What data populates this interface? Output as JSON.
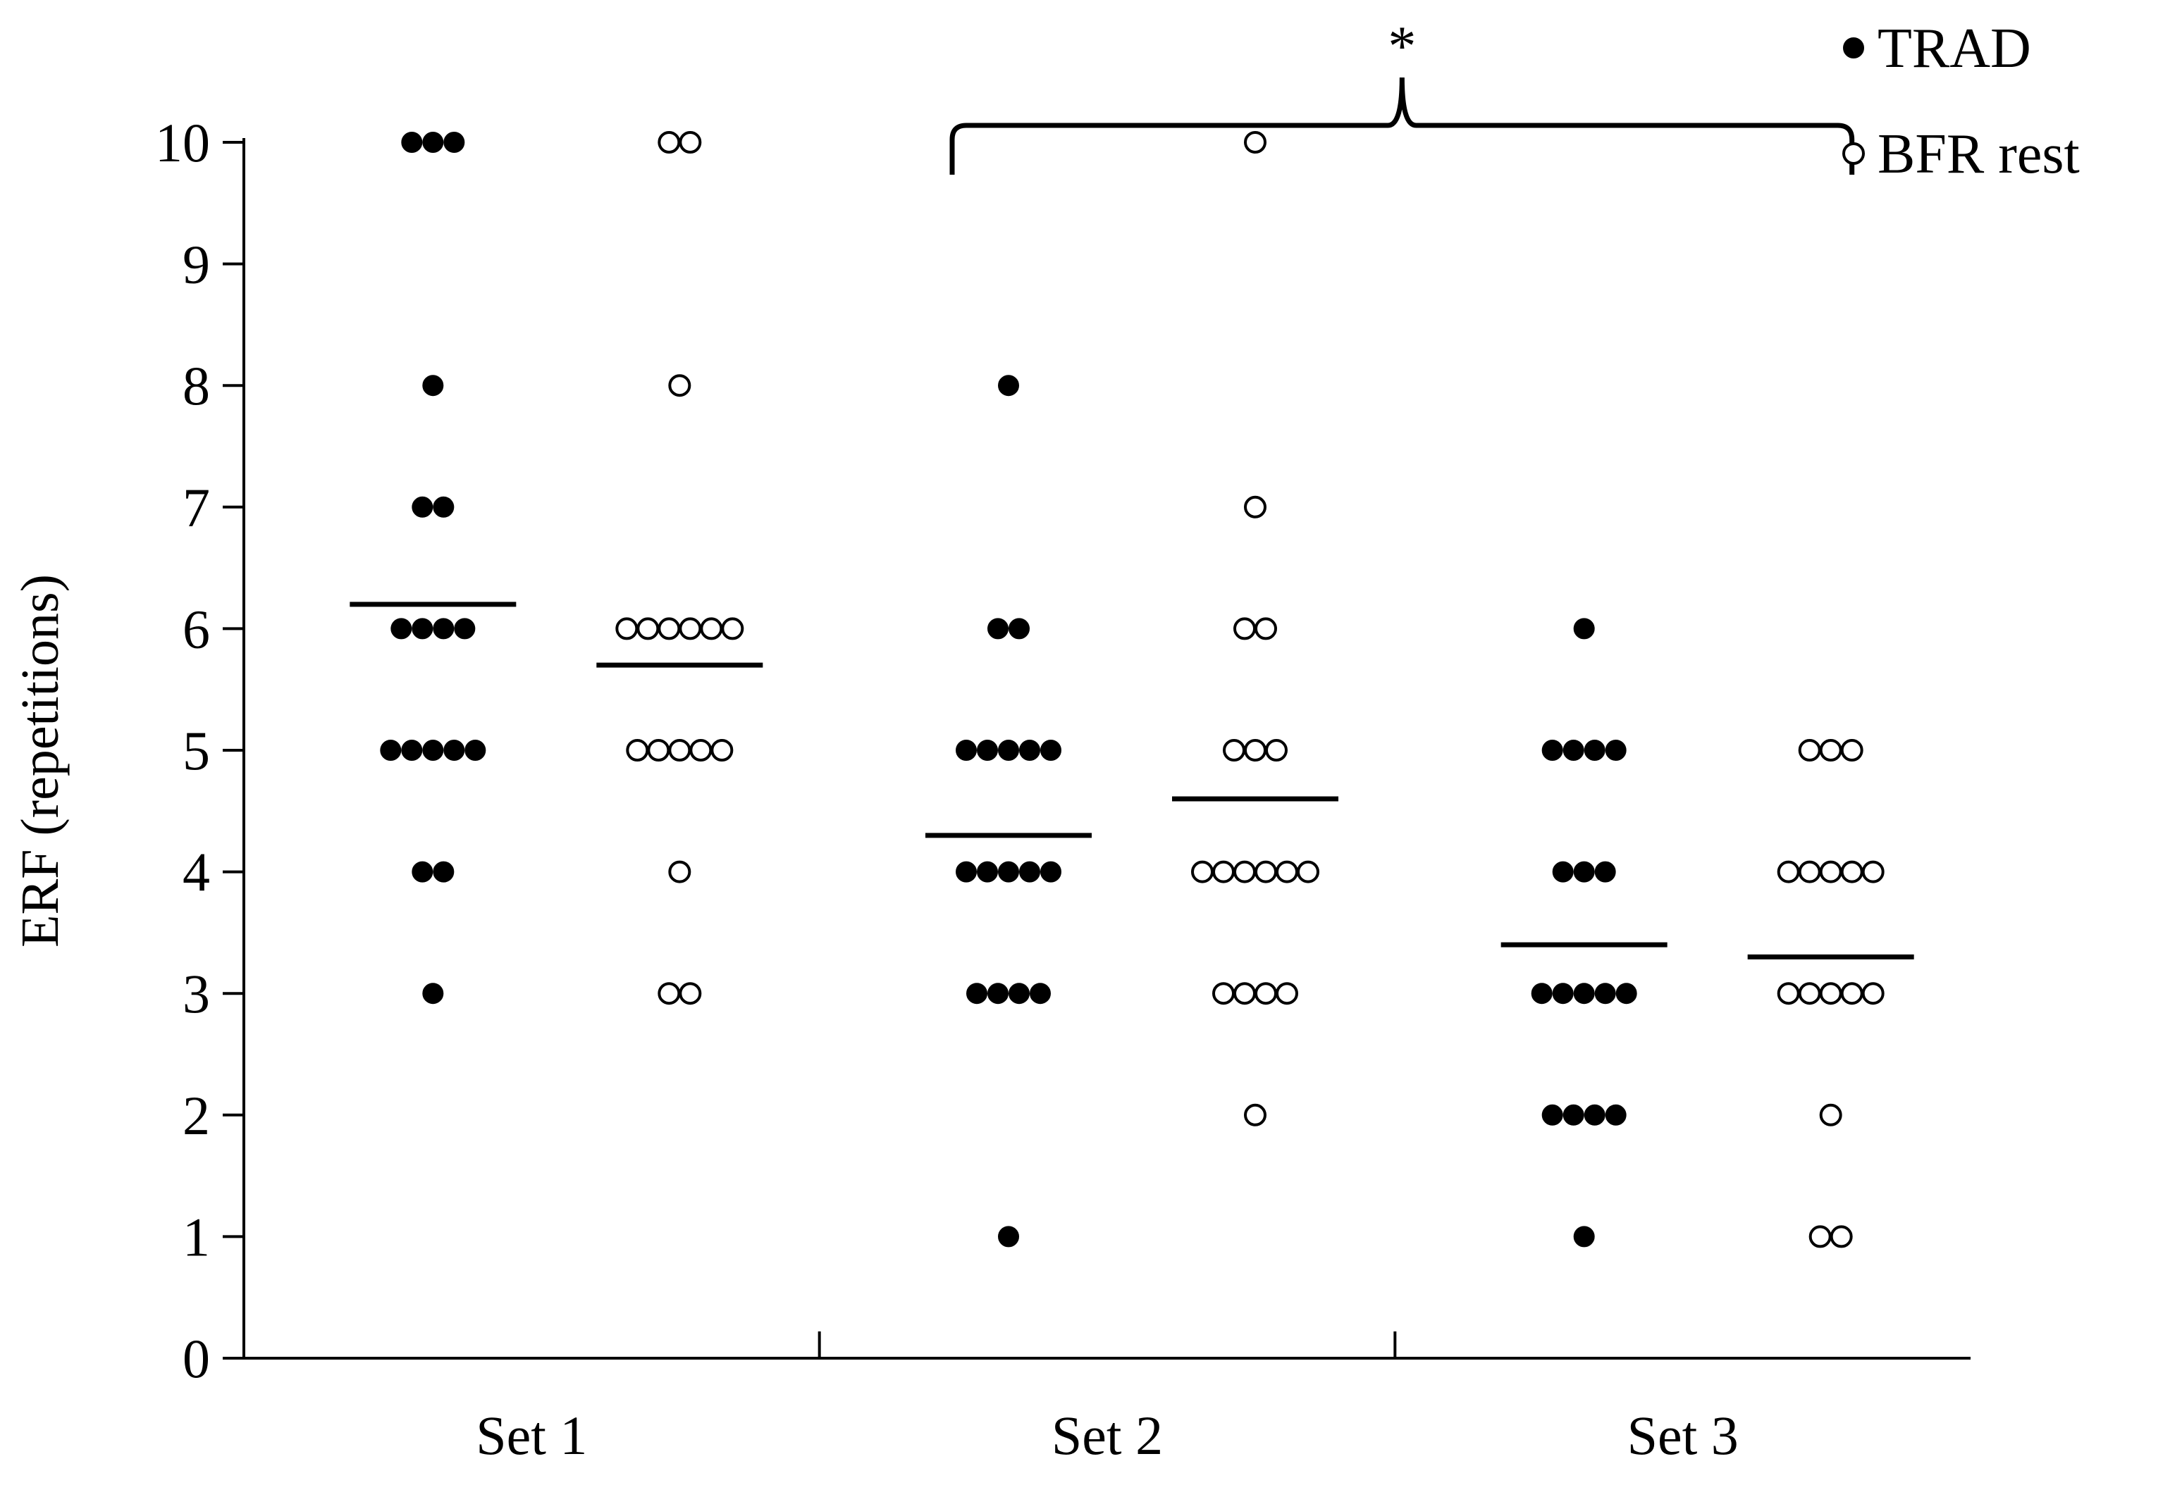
{
  "chart_data": {
    "type": "scatter",
    "ylabel": "ERF (repetitions)",
    "ylim": [
      0,
      10
    ],
    "yticks": [
      0,
      1,
      2,
      3,
      4,
      5,
      6,
      7,
      8,
      9,
      10
    ],
    "yticklabels": [
      "0",
      "1",
      "2",
      "3",
      "4",
      "5",
      "6",
      "7",
      "8",
      "9",
      "10"
    ],
    "categories": [
      "Set 1",
      "Set 2",
      "Set 3"
    ],
    "grid": false,
    "legend_position": "top-right",
    "series": [
      {
        "name": "TRAD",
        "marker": "filled",
        "color": "#000000",
        "points": [
          [
            {
              "y": 10,
              "n": 3
            },
            {
              "y": 8,
              "n": 1
            },
            {
              "y": 7,
              "n": 2
            },
            {
              "y": 6,
              "n": 4
            },
            {
              "y": 5,
              "n": 5
            },
            {
              "y": 4,
              "n": 2
            },
            {
              "y": 3,
              "n": 1
            }
          ],
          [
            {
              "y": 8,
              "n": 1
            },
            {
              "y": 6,
              "n": 2
            },
            {
              "y": 5,
              "n": 5
            },
            {
              "y": 4,
              "n": 5
            },
            {
              "y": 3,
              "n": 4
            },
            {
              "y": 1,
              "n": 1
            }
          ],
          [
            {
              "y": 6,
              "n": 1
            },
            {
              "y": 5,
              "n": 4
            },
            {
              "y": 4,
              "n": 3
            },
            {
              "y": 3,
              "n": 5
            },
            {
              "y": 2,
              "n": 4
            },
            {
              "y": 1,
              "n": 1
            }
          ]
        ],
        "means": [
          6.2,
          4.3,
          3.4
        ]
      },
      {
        "name": "BFR rest",
        "marker": "open",
        "color": "#000000",
        "points": [
          [
            {
              "y": 10,
              "n": 2
            },
            {
              "y": 8,
              "n": 1
            },
            {
              "y": 6,
              "n": 6
            },
            {
              "y": 5,
              "n": 5
            },
            {
              "y": 4,
              "n": 1
            },
            {
              "y": 3,
              "n": 2
            }
          ],
          [
            {
              "y": 10,
              "n": 1
            },
            {
              "y": 7,
              "n": 1
            },
            {
              "y": 6,
              "n": 2
            },
            {
              "y": 5,
              "n": 3
            },
            {
              "y": 4,
              "n": 6
            },
            {
              "y": 3,
              "n": 4
            },
            {
              "y": 2,
              "n": 1
            }
          ],
          [
            {
              "y": 5,
              "n": 3
            },
            {
              "y": 4,
              "n": 5
            },
            {
              "y": 3,
              "n": 5
            },
            {
              "y": 2,
              "n": 1
            },
            {
              "y": 1,
              "n": 2
            }
          ]
        ],
        "means": [
          5.7,
          4.6,
          3.3
        ]
      }
    ],
    "annotations": [
      {
        "text": "*",
        "type": "bracket",
        "from_category": "Set 2",
        "to_category": "Set 3"
      }
    ]
  }
}
